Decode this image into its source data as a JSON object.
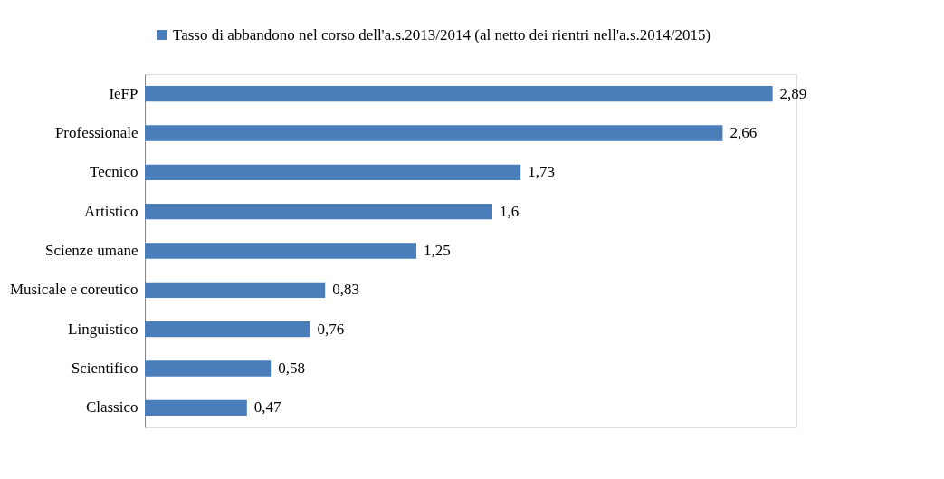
{
  "chart_data": {
    "type": "bar",
    "orientation": "horizontal",
    "legend": "top",
    "grid": false,
    "tick_labels": "y",
    "categories": [
      "IeFP",
      "Professionale",
      "Tecnico",
      "Artistico",
      "Scienze umane",
      "Musicale e coreutico",
      "Linguistico",
      "Scientifico",
      "Classico"
    ],
    "series": [
      {
        "name": "Tasso di abbandono nel corso dell'a.s.2013/2014 (al netto dei rientri nell'a.s.2014/2015)",
        "color": "#4a7ebb",
        "values": [
          2.89,
          2.66,
          1.73,
          1.6,
          1.25,
          0.83,
          0.76,
          0.58,
          0.47
        ],
        "value_labels": [
          "2,89",
          "2,66",
          "1,73",
          "1,6",
          "1,25",
          "0,83",
          "0,76",
          "0,58",
          "0,47"
        ]
      }
    ]
  }
}
